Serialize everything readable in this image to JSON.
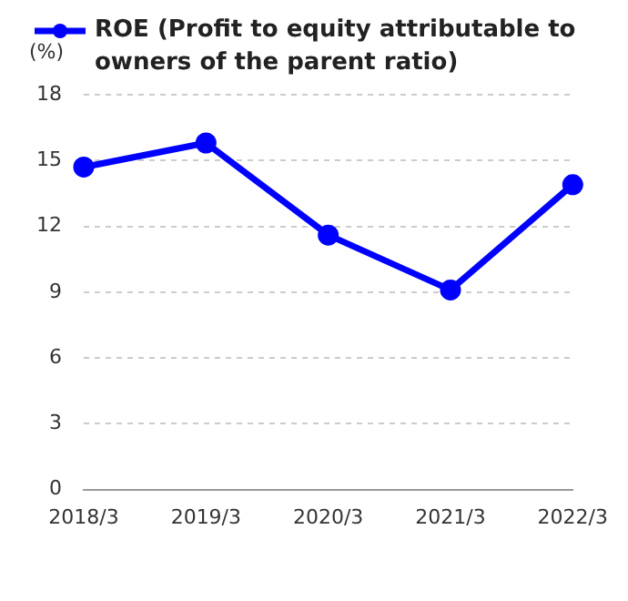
{
  "chart_data": {
    "type": "line",
    "ylabel": "(%)",
    "categories": [
      "2018/3",
      "2019/3",
      "2020/3",
      "2021/3",
      "2022/3"
    ],
    "series": [
      {
        "name": "ROE (Profit to equity attributable to owners of the parent ratio)",
        "color": "#0000ff",
        "values": [
          14.7,
          15.8,
          11.6,
          9.1,
          13.9
        ]
      }
    ],
    "ylim": [
      0,
      18
    ],
    "yticks": [
      0,
      3,
      6,
      9,
      12,
      15,
      18
    ],
    "grid": "y",
    "legend": "top",
    "marker": "circle",
    "line_style": "solid"
  }
}
